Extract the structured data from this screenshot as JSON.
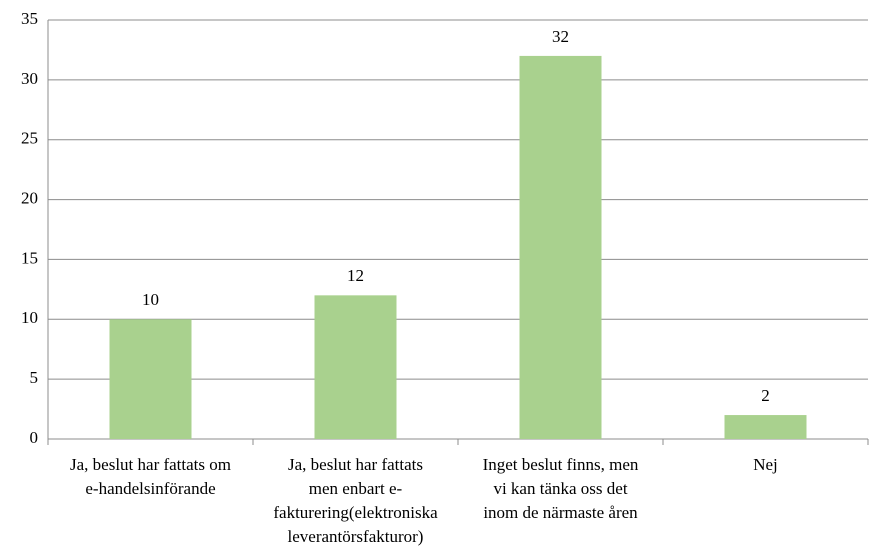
{
  "chart_data": {
    "type": "bar",
    "categories": [
      [
        "Ja, beslut har fattats om",
        "e-handelsinförande"
      ],
      [
        "Ja, beslut har fattats",
        "men enbart e-",
        "fakturering(elektroniska",
        "leverantörsfakturor)"
      ],
      [
        "Inget beslut finns, men",
        "vi kan tänka oss det",
        "inom de närmaste åren"
      ],
      [
        "Nej"
      ]
    ],
    "values": [
      10,
      12,
      32,
      2
    ],
    "color": "#a9d18e",
    "ylim": [
      0,
      35
    ],
    "yticks": [
      0,
      5,
      10,
      15,
      20,
      25,
      30,
      35
    ],
    "grid": true,
    "data_labels": true
  }
}
